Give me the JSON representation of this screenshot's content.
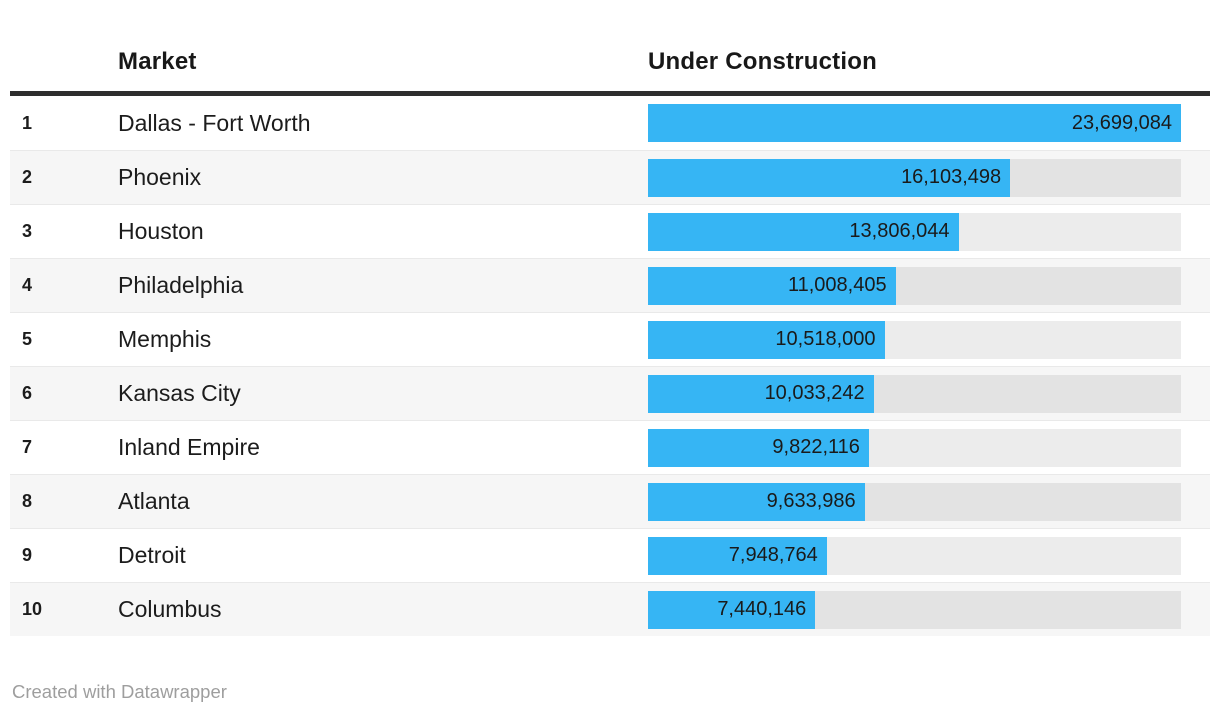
{
  "table": {
    "columns": {
      "rank": "",
      "market": "Market",
      "value": "Under Construction"
    },
    "rows": [
      {
        "rank": "1",
        "market": "Dallas - Fort Worth",
        "value": 23699084,
        "value_label": "23,699,084"
      },
      {
        "rank": "2",
        "market": "Phoenix",
        "value": 16103498,
        "value_label": "16,103,498"
      },
      {
        "rank": "3",
        "market": "Houston",
        "value": 13806044,
        "value_label": "13,806,044"
      },
      {
        "rank": "4",
        "market": "Philadelphia",
        "value": 11008405,
        "value_label": "11,008,405"
      },
      {
        "rank": "5",
        "market": "Memphis",
        "value": 10518000,
        "value_label": "10,518,000"
      },
      {
        "rank": "6",
        "market": "Kansas City",
        "value": 10033242,
        "value_label": "10,033,242"
      },
      {
        "rank": "7",
        "market": "Inland Empire",
        "value": 9822116,
        "value_label": "9,822,116"
      },
      {
        "rank": "8",
        "market": "Atlanta",
        "value": 9633986,
        "value_label": "9,633,986"
      },
      {
        "rank": "9",
        "market": "Detroit",
        "value": 7948764,
        "value_label": "7,948,764"
      },
      {
        "rank": "10",
        "market": "Columbus",
        "value": 7440146,
        "value_label": "7,440,146"
      }
    ]
  },
  "footer": {
    "credit": "Created with Datawrapper"
  },
  "colors": {
    "bar": "#36b5f4",
    "bar_track": "rgba(0,0,0,0.075)",
    "row_stripe": "#f6f6f6",
    "header_rule": "#2e2e2e",
    "text": "#1c1c1c",
    "muted_text": "#9e9e9e"
  },
  "chart_data": {
    "type": "bar",
    "orientation": "horizontal",
    "title": "",
    "xlabel": "Under Construction",
    "ylabel": "Market",
    "categories": [
      "Dallas - Fort Worth",
      "Phoenix",
      "Houston",
      "Philadelphia",
      "Memphis",
      "Kansas City",
      "Inland Empire",
      "Atlanta",
      "Detroit",
      "Columbus"
    ],
    "values": [
      23699084,
      16103498,
      13806044,
      11008405,
      10518000,
      10033242,
      9822116,
      9633986,
      7948764,
      7440146
    ],
    "ranks": [
      1,
      2,
      3,
      4,
      5,
      6,
      7,
      8,
      9,
      10
    ],
    "xlim": [
      0,
      23699084
    ],
    "grid": false,
    "legend": false,
    "value_labels": "inside-end",
    "attribution": "Created with Datawrapper"
  }
}
